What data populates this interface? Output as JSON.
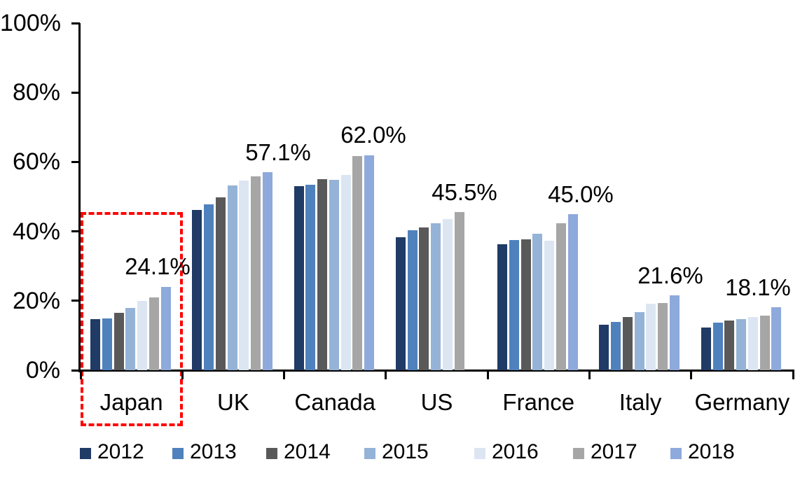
{
  "chart_data": {
    "type": "bar",
    "title": "",
    "xlabel": "",
    "ylabel": "",
    "ylim": [
      0,
      100
    ],
    "grid": false,
    "legend_position": "bottom",
    "y_tick_labels": [
      "0%",
      "20%",
      "40%",
      "60%",
      "80%",
      "100%"
    ],
    "categories": [
      "Japan",
      "UK",
      "Canada",
      "US",
      "France",
      "Italy",
      "Germany"
    ],
    "series": [
      {
        "name": "2012",
        "color": "#1F3B66",
        "values": [
          14.8,
          46.2,
          53.0,
          38.4,
          36.4,
          13.2,
          12.4
        ]
      },
      {
        "name": "2013",
        "color": "#4F81BD",
        "values": [
          15.0,
          47.7,
          53.4,
          40.3,
          37.6,
          14.0,
          13.8
        ]
      },
      {
        "name": "2014",
        "color": "#595959",
        "values": [
          16.6,
          49.9,
          55.0,
          41.2,
          37.7,
          15.4,
          14.3
        ]
      },
      {
        "name": "2015",
        "color": "#95B3D7",
        "values": [
          18.0,
          53.3,
          54.8,
          42.3,
          39.3,
          16.8,
          14.8
        ]
      },
      {
        "name": "2016",
        "color": "#DCE6F2",
        "values": [
          19.9,
          54.7,
          56.2,
          43.6,
          37.4,
          19.2,
          15.4
        ]
      },
      {
        "name": "2017",
        "color": "#A6A6A6",
        "values": [
          21.0,
          55.8,
          61.8,
          45.5,
          42.3,
          19.3,
          15.7
        ]
      },
      {
        "name": "2018",
        "color": "#8EA9DB",
        "values": [
          24.1,
          57.1,
          62.0,
          null,
          45.0,
          21.6,
          18.1
        ]
      }
    ],
    "data_labels": [
      {
        "category": "Japan",
        "text": "24.1%",
        "value": 24.1
      },
      {
        "category": "UK",
        "text": "57.1%",
        "value": 57.1
      },
      {
        "category": "Canada",
        "text": "62.0%",
        "value": 62.0
      },
      {
        "category": "US",
        "text": "45.5%",
        "value": 45.5
      },
      {
        "category": "France",
        "text": "45.0%",
        "value": 45.0
      },
      {
        "category": "Italy",
        "text": "21.6%",
        "value": 21.6
      },
      {
        "category": "Germany",
        "text": "18.1%",
        "value": 18.1
      }
    ],
    "annotations": [
      {
        "type": "highlight-box",
        "target": "Japan",
        "style": "dashed",
        "color": "#FF0000"
      }
    ]
  }
}
